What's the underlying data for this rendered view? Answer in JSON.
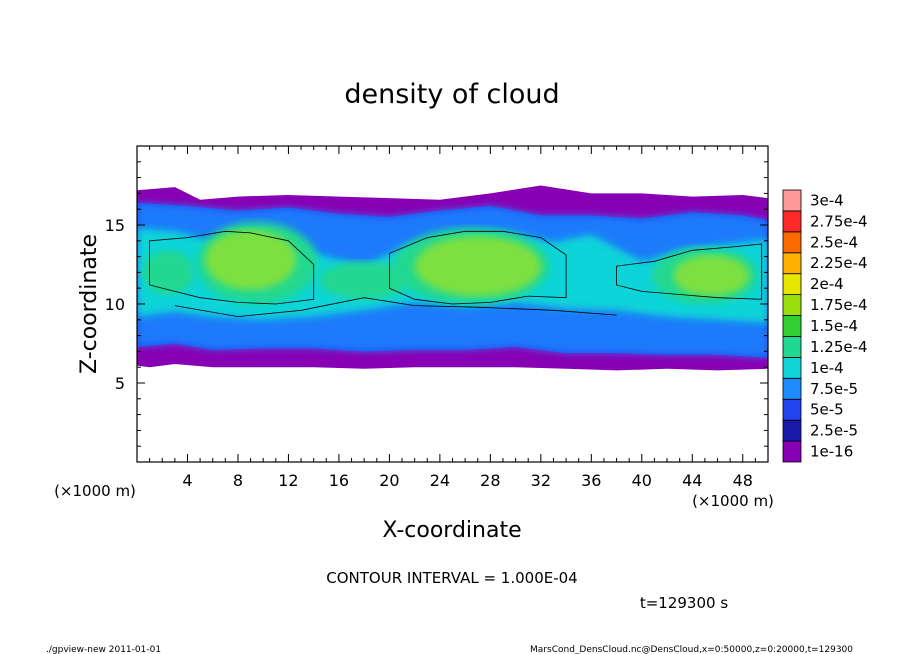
{
  "chart_data": {
    "type": "heatmap",
    "title": "density of cloud",
    "xlabel": "X-coordinate",
    "ylabel": "Z-coordinate",
    "x_unit": "(×1000 m)",
    "y_unit": "(×1000 m)",
    "xlim": [
      0,
      50
    ],
    "ylim": [
      0,
      20
    ],
    "x_ticks": [
      "4",
      "8",
      "12",
      "16",
      "20",
      "24",
      "28",
      "32",
      "36",
      "40",
      "44",
      "48"
    ],
    "x_tick_values": [
      4,
      8,
      12,
      16,
      20,
      24,
      28,
      32,
      36,
      40,
      44,
      48
    ],
    "y_ticks": [
      "5",
      "10",
      "15"
    ],
    "y_tick_values": [
      5,
      10,
      15
    ],
    "contour_interval": "CONTOUR INTERVAL = 1.000E-04",
    "time_label": "t=129300 s",
    "colorbar": {
      "levels": [
        "1e-16",
        "2.5e-5",
        "5e-5",
        "7.5e-5",
        "1e-4",
        "1.25e-4",
        "1.5e-4",
        "1.75e-4",
        "2e-4",
        "2.25e-4",
        "2.5e-4",
        "2.75e-4",
        "3e-4"
      ],
      "colors": [
        "#8800b4",
        "#1a1aa8",
        "#2244ee",
        "#1e8cff",
        "#10d4d8",
        "#20d890",
        "#30d030",
        "#9ae010",
        "#e6e600",
        "#ffb000",
        "#ff6a00",
        "#ff2a2a",
        "#ff9a9a"
      ]
    },
    "cloud_layers": [
      {
        "name_level": "1e-16",
        "color": "#8800b4"
      },
      {
        "name_level": "5e-5",
        "color": "#2244ee"
      },
      {
        "name_level": "7.5e-5",
        "color": "#1e8cff"
      },
      {
        "name_level": "1e-4",
        "color": "#10d4d8"
      },
      {
        "name_level": "1.25e-4",
        "color": "#20d890"
      },
      {
        "name_level": "1.5e-4",
        "color": "#7ee040"
      }
    ]
  },
  "footer": {
    "left": "./gpview-new  2011-01-01",
    "right": "MarsCond_DensCloud.nc@DensCloud,x=0:50000,z=0:20000,t=129300"
  }
}
